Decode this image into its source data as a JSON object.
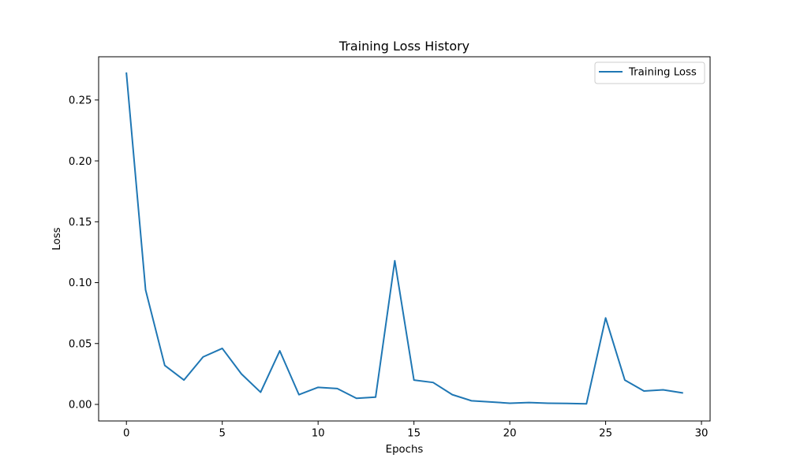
{
  "chart_data": {
    "type": "line",
    "title": "Training Loss History",
    "xlabel": "Epochs",
    "ylabel": "Loss",
    "xlim": [
      -1.45,
      30.45
    ],
    "ylim": [
      -0.0136,
      0.2855
    ],
    "xticks": [
      0,
      5,
      10,
      15,
      20,
      25,
      30
    ],
    "xtick_labels": [
      "0",
      "5",
      "10",
      "15",
      "20",
      "25",
      "30"
    ],
    "yticks": [
      0.0,
      0.05,
      0.1,
      0.15,
      0.2,
      0.25
    ],
    "ytick_labels": [
      "0.00",
      "0.05",
      "0.10",
      "0.15",
      "0.20",
      "0.25"
    ],
    "grid": false,
    "legend": "upper right",
    "series": [
      {
        "name": "Training Loss",
        "color": "#1f77b4",
        "x": [
          0,
          1,
          2,
          3,
          4,
          5,
          6,
          7,
          8,
          9,
          10,
          11,
          12,
          13,
          14,
          15,
          16,
          17,
          18,
          19,
          20,
          21,
          22,
          23,
          24,
          25,
          26,
          27,
          28,
          29
        ],
        "values": [
          0.272,
          0.094,
          0.032,
          0.02,
          0.039,
          0.046,
          0.025,
          0.01,
          0.044,
          0.008,
          0.014,
          0.013,
          0.005,
          0.006,
          0.118,
          0.02,
          0.018,
          0.008,
          0.003,
          0.002,
          0.001,
          0.0015,
          0.001,
          0.0008,
          0.0005,
          0.071,
          0.02,
          0.011,
          0.012,
          0.0095
        ]
      }
    ]
  }
}
